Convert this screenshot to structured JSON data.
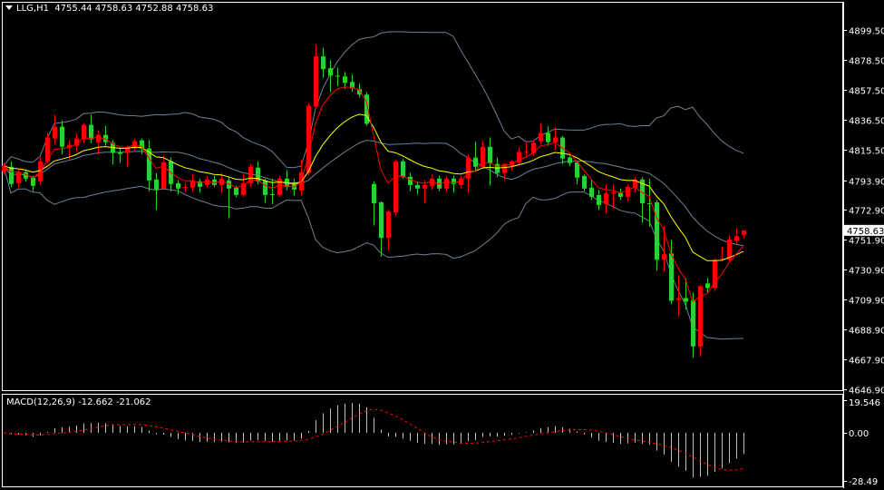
{
  "header": {
    "symbol": "LLG,H1",
    "open": "4755.44",
    "high": "4758.63",
    "low": "4752.88",
    "close": "4758.63"
  },
  "macd_header": {
    "label": "MACD(12,26,9)",
    "main": "-12.662",
    "signal": "-21.062"
  },
  "colors": {
    "background": "#000000",
    "bull_candle": "#ff0000",
    "bear_candle": "#32cd32",
    "bollinger": "#708090",
    "fast_ma": "#ff0000",
    "slow_ma": "#ffff00",
    "macd_histogram": "#c0c0c0",
    "macd_signal": "#ff0000",
    "frame": "#ffffff"
  },
  "chart_data": [
    {
      "type": "candlestick",
      "title": "LLG,H1",
      "ylim": [
        4646.9,
        4899.5
      ],
      "y_ticks": [
        "4899.50",
        "4878.50",
        "4857.50",
        "4836.50",
        "4815.50",
        "4793.90",
        "4772.90",
        "4751.90",
        "4730.90",
        "4709.90",
        "4688.90",
        "4667.90",
        "4646.90"
      ],
      "current_price_label": "4758.63",
      "grid": false,
      "overlays": [
        "bollinger-bands",
        "moving-average-red",
        "moving-average-yellow"
      ],
      "ohlc": [
        [
          4800.1,
          4806.0,
          4797.5,
          4804.0
        ],
        [
          4803.3,
          4807.0,
          4789.0,
          4791.2
        ],
        [
          4791.8,
          4801.0,
          4788.5,
          4799.5
        ],
        [
          4799.5,
          4801.5,
          4793.0,
          4795.0
        ],
        [
          4795.7,
          4797.0,
          4786.0,
          4789.9
        ],
        [
          4793.1,
          4810.0,
          4791.0,
          4807.2
        ],
        [
          4807.2,
          4827.0,
          4806.0,
          4823.9
        ],
        [
          4823.2,
          4840.0,
          4819.0,
          4831.5
        ],
        [
          4831.5,
          4836.0,
          4812.0,
          4817.4
        ],
        [
          4816.8,
          4822.0,
          4809.0,
          4818.7
        ],
        [
          4818.1,
          4827.0,
          4814.0,
          4823.2
        ],
        [
          4822.6,
          4834.0,
          4820.0,
          4832.8
        ],
        [
          4832.8,
          4840.0,
          4820.0,
          4822.6
        ],
        [
          4820.6,
          4829.0,
          4812.0,
          4825.8
        ],
        [
          4825.8,
          4832.0,
          4818.0,
          4820.6
        ],
        [
          4820.0,
          4822.0,
          4805.0,
          4813.0
        ],
        [
          4813.6,
          4817.0,
          4806.0,
          4812.3
        ],
        [
          4813.0,
          4818.0,
          4803.0,
          4816.8
        ],
        [
          4816.2,
          4823.0,
          4814.0,
          4821.3
        ],
        [
          4821.9,
          4823.0,
          4812.0,
          4816.2
        ],
        [
          4816.2,
          4822.0,
          4786.0,
          4793.7
        ],
        [
          4794.4,
          4799.0,
          4773.0,
          4787.3
        ],
        [
          4788.0,
          4811.0,
          4787.0,
          4806.5
        ],
        [
          4807.2,
          4810.0,
          4786.0,
          4791.2
        ],
        [
          4791.8,
          4794.0,
          4784.0,
          4788.0
        ],
        [
          4788.6,
          4792.0,
          4786.0,
          4789.2
        ],
        [
          4788.6,
          4798.0,
          4786.0,
          4793.7
        ],
        [
          4793.1,
          4795.0,
          4785.0,
          4789.2
        ],
        [
          4790.5,
          4797.0,
          4789.0,
          4794.4
        ],
        [
          4794.4,
          4797.0,
          4789.0,
          4790.5
        ],
        [
          4790.5,
          4799.0,
          4785.0,
          4795.0
        ],
        [
          4793.7,
          4796.0,
          4767.0,
          4788.0
        ],
        [
          4788.6,
          4790.0,
          4782.0,
          4783.5
        ],
        [
          4783.5,
          4798.0,
          4782.0,
          4791.8
        ],
        [
          4791.8,
          4805.0,
          4789.0,
          4803.3
        ],
        [
          4802.7,
          4807.0,
          4791.0,
          4793.1
        ],
        [
          4793.7,
          4795.0,
          4778.0,
          4783.5
        ],
        [
          4784.1,
          4795.0,
          4777.0,
          4783.5
        ],
        [
          4783.5,
          4797.0,
          4782.0,
          4795.0
        ],
        [
          4795.0,
          4801.0,
          4787.0,
          4789.2
        ],
        [
          4792.4,
          4795.0,
          4783.0,
          4787.3
        ],
        [
          4786.7,
          4808.0,
          4783.0,
          4799.5
        ],
        [
          4798.9,
          4848.0,
          4797.0,
          4846.3
        ],
        [
          4845.6,
          4889.0,
          4844.0,
          4880.9
        ],
        [
          4880.9,
          4887.0,
          4866.0,
          4871.9
        ],
        [
          4872.6,
          4878.0,
          4856.0,
          4867.4
        ],
        [
          4867.4,
          4873.0,
          4860.0,
          4866.8
        ],
        [
          4866.8,
          4870.0,
          4858.0,
          4862.3
        ],
        [
          4863.0,
          4868.0,
          4856.0,
          4858.5
        ],
        [
          4857.8,
          4862.0,
          4852.0,
          4854.0
        ],
        [
          4854.0,
          4856.0,
          4832.0,
          4833.5
        ],
        [
          4791.2,
          4793.0,
          4762.0,
          4777.7
        ],
        [
          4778.3,
          4779.0,
          4740.0,
          4753.3
        ],
        [
          4753.3,
          4773.0,
          4745.0,
          4771.9
        ],
        [
          4771.3,
          4808.0,
          4769.0,
          4807.2
        ],
        [
          4807.2,
          4809.0,
          4795.0,
          4796.3
        ],
        [
          4796.3,
          4799.0,
          4786.0,
          4790.5
        ],
        [
          4790.5,
          4793.0,
          4784.0,
          4788.0
        ],
        [
          4788.0,
          4794.0,
          4778.0,
          4790.5
        ],
        [
          4789.9,
          4798.0,
          4787.0,
          4795.0
        ],
        [
          4795.0,
          4797.0,
          4786.0,
          4788.0
        ],
        [
          4788.0,
          4797.0,
          4786.0,
          4795.0
        ],
        [
          4795.0,
          4797.0,
          4785.0,
          4791.2
        ],
        [
          4790.5,
          4797.0,
          4788.0,
          4795.0
        ],
        [
          4795.0,
          4812.0,
          4785.0,
          4809.8
        ],
        [
          4809.8,
          4821.0,
          4800.0,
          4803.3
        ],
        [
          4803.3,
          4822.0,
          4802.0,
          4817.4
        ],
        [
          4817.4,
          4824.0,
          4790.0,
          4805.9
        ],
        [
          4805.3,
          4810.0,
          4796.0,
          4798.9
        ],
        [
          4798.9,
          4806.0,
          4794.0,
          4805.3
        ],
        [
          4804.0,
          4808.0,
          4801.0,
          4807.2
        ],
        [
          4806.5,
          4817.0,
          4805.0,
          4813.6
        ],
        [
          4813.3,
          4820.0,
          4810.0,
          4813.8
        ],
        [
          4813.0,
          4822.0,
          4811.0,
          4820.0
        ],
        [
          4821.3,
          4834.0,
          4819.0,
          4827.1
        ],
        [
          4827.1,
          4832.0,
          4818.0,
          4820.6
        ],
        [
          4820.6,
          4831.0,
          4815.0,
          4823.9
        ],
        [
          4823.9,
          4825.0,
          4805.0,
          4809.1
        ],
        [
          4809.8,
          4811.0,
          4804.0,
          4805.9
        ],
        [
          4806.5,
          4807.0,
          4791.0,
          4795.7
        ],
        [
          4796.9,
          4798.0,
          4786.0,
          4788.0
        ],
        [
          4788.6,
          4794.0,
          4780.0,
          4782.2
        ],
        [
          4783.5,
          4787.0,
          4773.0,
          4776.4
        ],
        [
          4777.1,
          4791.0,
          4771.0,
          4784.8
        ],
        [
          4784.8,
          4791.0,
          4774.0,
          4785.2
        ],
        [
          4784.8,
          4788.0,
          4780.0,
          4782.2
        ],
        [
          4782.2,
          4791.0,
          4779.0,
          4789.2
        ],
        [
          4788.6,
          4796.0,
          4785.0,
          4794.4
        ],
        [
          4794.4,
          4796.0,
          4764.0,
          4777.7
        ],
        [
          4777.7,
          4795.0,
          4761.0,
          4777.3
        ],
        [
          4778.3,
          4780.0,
          4730.0,
          4737.9
        ],
        [
          4737.9,
          4762.0,
          4730.0,
          4741.8
        ],
        [
          4742.4,
          4752.0,
          4707.0,
          4709.1
        ],
        [
          4709.7,
          4727.0,
          4698.0,
          4711.0
        ],
        [
          4711.0,
          4725.0,
          4703.0,
          4708.5
        ],
        [
          4709.7,
          4715.0,
          4669.0,
          4677.0
        ],
        [
          4677.0,
          4720.0,
          4670.0,
          4719.4
        ],
        [
          4721.3,
          4725.0,
          4715.0,
          4718.1
        ],
        [
          4718.1,
          4739.0,
          4716.0,
          4737.9
        ],
        [
          4738.3,
          4747.0,
          4737.0,
          4738.9
        ],
        [
          4737.9,
          4755.0,
          4736.0,
          4752.1
        ],
        [
          4751.4,
          4760.0,
          4749.0,
          4754.6
        ],
        [
          4755.44,
          4758.63,
          4752.88,
          4758.63
        ]
      ]
    },
    {
      "type": "bar",
      "title": "MACD(12,26,9)",
      "params": {
        "fast": 12,
        "slow": 26,
        "signal": 9
      },
      "ylim": [
        -28.49,
        19.546
      ],
      "y_ticks": [
        "19.546",
        "0.00",
        "-28.49"
      ],
      "last_main": -12.662,
      "last_signal": -21.062
    }
  ]
}
